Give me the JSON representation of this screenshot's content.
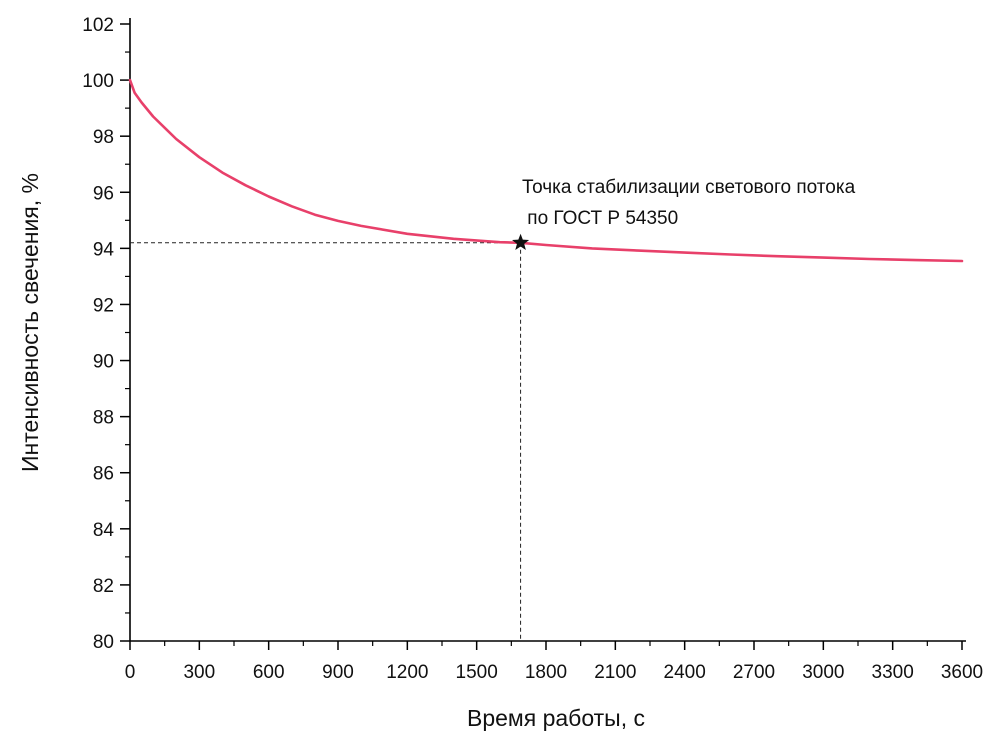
{
  "chart_data": {
    "type": "line",
    "title": "",
    "xlabel": "Время работы, с",
    "ylabel": "Интенсивность свечения, %",
    "xlim": [
      0,
      3600
    ],
    "ylim": [
      80,
      102
    ],
    "x_ticks": [
      0,
      300,
      600,
      900,
      1200,
      1500,
      1800,
      2100,
      2400,
      2700,
      3000,
      3300,
      3600
    ],
    "y_ticks": [
      80,
      82,
      84,
      86,
      88,
      90,
      92,
      94,
      96,
      98,
      100,
      102
    ],
    "grid": false,
    "series": [
      {
        "color": "#e8406a",
        "x": [
          0,
          20,
          50,
          100,
          200,
          300,
          400,
          500,
          600,
          700,
          800,
          900,
          1000,
          1200,
          1400,
          1600,
          1690,
          1800,
          2000,
          2200,
          2400,
          2600,
          2800,
          3000,
          3200,
          3400,
          3600
        ],
        "y": [
          100.0,
          99.55,
          99.2,
          98.7,
          97.9,
          97.25,
          96.7,
          96.25,
          95.85,
          95.5,
          95.2,
          94.98,
          94.8,
          94.52,
          94.34,
          94.22,
          94.2,
          94.12,
          94.0,
          93.92,
          93.85,
          93.78,
          93.72,
          93.67,
          93.62,
          93.58,
          93.55
        ]
      }
    ],
    "annotation": {
      "marker": "star",
      "x": 1690,
      "y": 94.2,
      "text_lines": [
        "Точка стабилизации светового потока",
        " по ГОСТ Р 54350"
      ]
    }
  }
}
